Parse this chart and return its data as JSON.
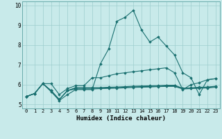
{
  "title": "",
  "xlabel": "Humidex (Indice chaleur)",
  "background_color": "#c8eaea",
  "grid_color": "#9ecece",
  "line_color": "#1a7070",
  "xlim": [
    -0.5,
    23.5
  ],
  "ylim": [
    4.8,
    10.2
  ],
  "xticks": [
    0,
    1,
    2,
    3,
    4,
    5,
    6,
    7,
    8,
    9,
    10,
    11,
    12,
    13,
    14,
    15,
    16,
    17,
    18,
    19,
    20,
    21,
    22,
    23
  ],
  "yticks": [
    5,
    6,
    7,
    8,
    9,
    10
  ],
  "series": [
    [
      5.4,
      5.55,
      6.05,
      5.65,
      5.2,
      5.5,
      5.75,
      5.75,
      5.75,
      7.05,
      7.8,
      9.2,
      9.4,
      9.75,
      8.75,
      8.15,
      8.4,
      7.95,
      7.5,
      6.6,
      6.35,
      5.5,
      6.25,
      6.3
    ],
    [
      5.4,
      5.55,
      6.05,
      6.05,
      5.5,
      5.8,
      5.95,
      5.95,
      6.35,
      6.35,
      6.45,
      6.55,
      6.6,
      6.65,
      6.7,
      6.75,
      6.8,
      6.85,
      6.6,
      5.75,
      6.0,
      6.1,
      6.25,
      6.3
    ],
    [
      5.4,
      5.55,
      6.05,
      5.7,
      5.25,
      5.7,
      5.85,
      5.85,
      5.85,
      5.85,
      5.87,
      5.88,
      5.9,
      5.92,
      5.93,
      5.94,
      5.95,
      5.97,
      5.97,
      5.82,
      5.84,
      5.87,
      5.88,
      5.92
    ],
    [
      5.4,
      5.55,
      6.05,
      5.7,
      5.25,
      5.7,
      5.82,
      5.82,
      5.82,
      5.82,
      5.84,
      5.85,
      5.87,
      5.89,
      5.9,
      5.91,
      5.92,
      5.94,
      5.94,
      5.8,
      5.82,
      5.84,
      5.86,
      5.9
    ],
    [
      5.4,
      5.55,
      6.05,
      5.7,
      5.25,
      5.7,
      5.78,
      5.78,
      5.78,
      5.8,
      5.81,
      5.82,
      5.84,
      5.86,
      5.87,
      5.88,
      5.9,
      5.91,
      5.91,
      5.78,
      5.8,
      5.82,
      5.83,
      5.87
    ]
  ]
}
